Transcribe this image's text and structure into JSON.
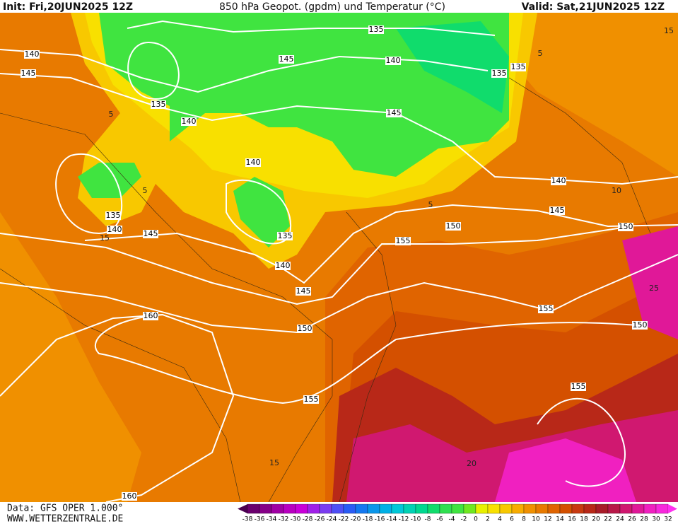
{
  "header": {
    "init": "Init: Fri,20JUN2025 12Z",
    "title": "850 hPa Geopot. (gpdm) und Temperatur (°C)",
    "valid": "Valid: Sat,21JUN2025 12Z"
  },
  "footer": {
    "data": "Data: GFS OPER 1.000°",
    "site": "WWW.WETTERZENTRALE.DE"
  },
  "contour_labels": [
    135,
    140,
    145,
    145,
    140,
    135,
    135,
    135,
    140,
    145,
    140,
    140,
    145,
    135,
    140,
    145,
    135,
    150,
    150,
    155,
    140,
    145,
    155,
    150,
    160,
    150,
    155,
    155,
    160
  ],
  "isotherm_labels": [
    5,
    5,
    5,
    10,
    15,
    5,
    25,
    15,
    20,
    15
  ],
  "colorbar": {
    "labels": [
      -38,
      -36,
      -34,
      -32,
      -30,
      -28,
      -26,
      -24,
      -22,
      -20,
      -18,
      -16,
      -14,
      -12,
      -10,
      -8,
      -6,
      -4,
      -2,
      0,
      2,
      4,
      6,
      8,
      10,
      12,
      14,
      16,
      18,
      20,
      22,
      24,
      26,
      28,
      30,
      32
    ],
    "colors": [
      "#4a0050",
      "#6a006e",
      "#860088",
      "#a000a4",
      "#b800c0",
      "#c800d8",
      "#a020e8",
      "#7a3cf0",
      "#4f4ff5",
      "#2a5cf5",
      "#1478f0",
      "#0a96ea",
      "#00b0e6",
      "#00c8d8",
      "#00d2b4",
      "#00d890",
      "#10dc6c",
      "#30e050",
      "#40e440",
      "#70e820",
      "#e8f000",
      "#f8e000",
      "#f8c800",
      "#f8ac00",
      "#f09000",
      "#e87a00",
      "#e06400",
      "#d45000",
      "#c83a10",
      "#b82818",
      "#a81c28",
      "#b81848",
      "#d01870",
      "#e01898",
      "#f020c0",
      "#f828dc",
      "#ff30f0"
    ]
  }
}
